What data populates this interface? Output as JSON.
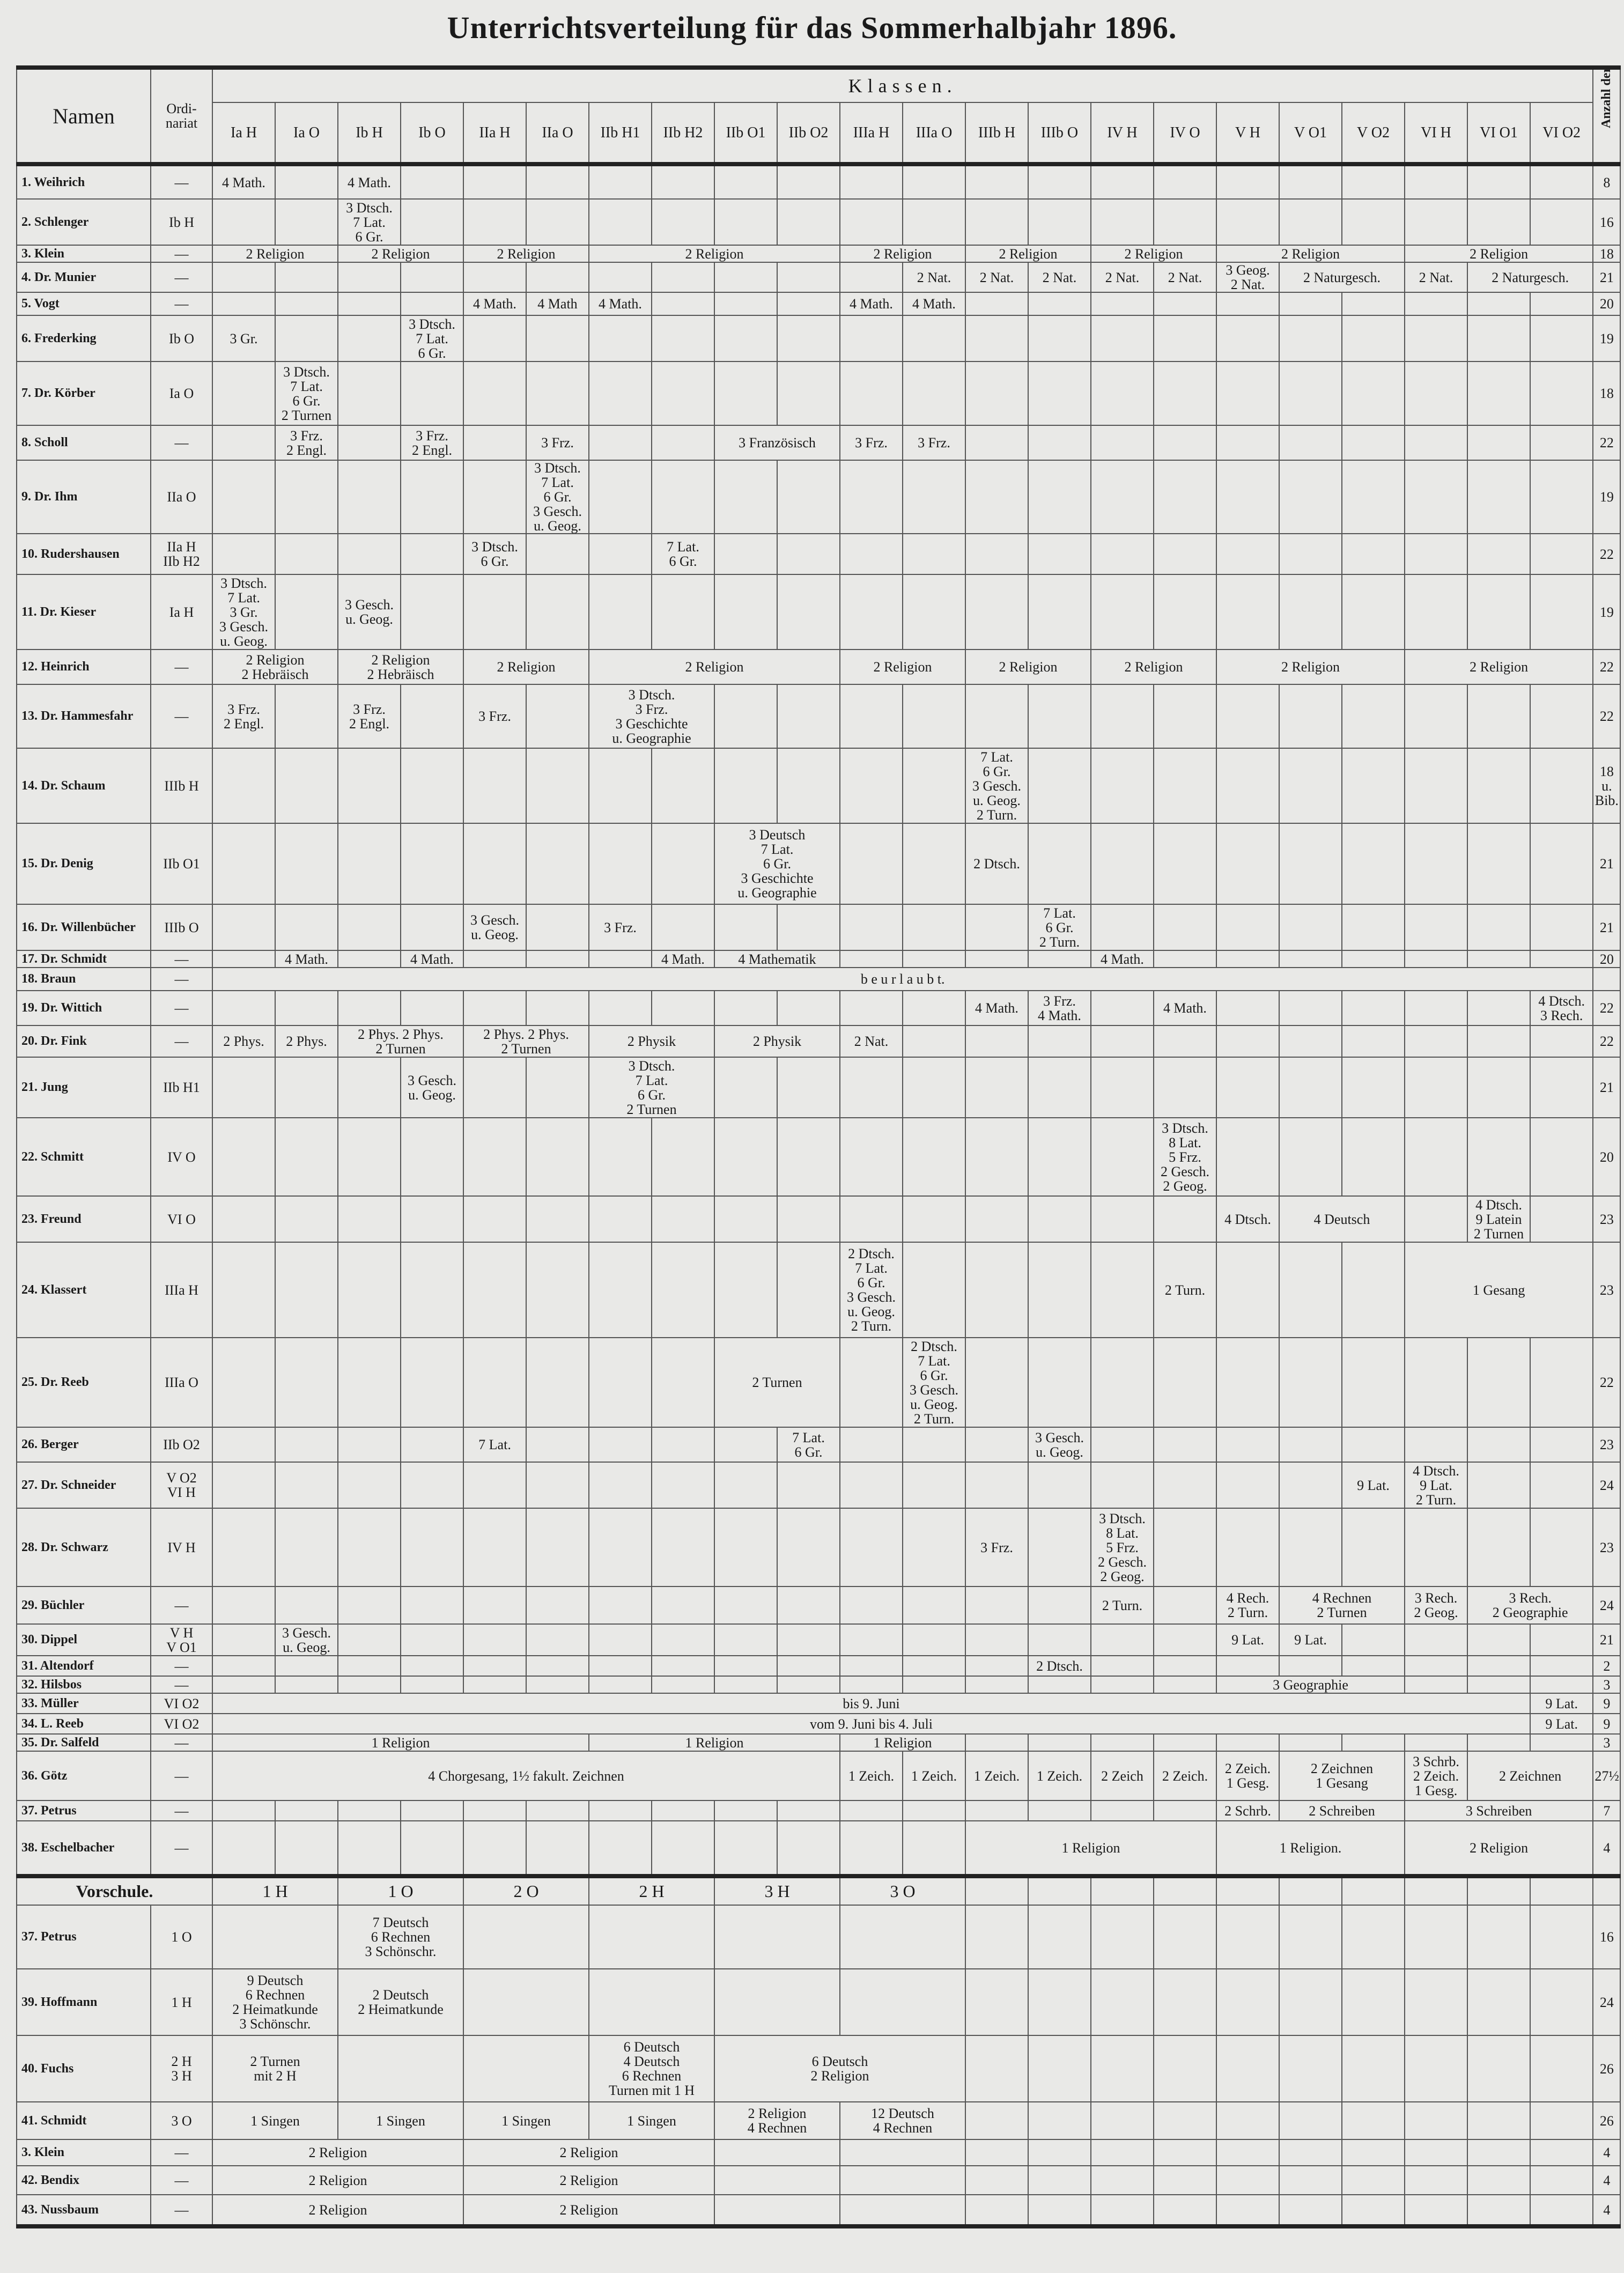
{
  "title": "Unterrichtsverteilung für das Sommerhalbjahr 1896.",
  "header": {
    "namen": "Namen",
    "ordinariat": "Ordi-\nnariat",
    "klassen": "Klassen.",
    "hours": "Anzahl der Stunden",
    "classes": [
      "Ia H",
      "Ia O",
      "Ib H",
      "Ib O",
      "IIa H",
      "IIa O",
      "IIb H1",
      "IIb H2",
      "IIb O1",
      "IIb O2",
      "IIIa H",
      "IIIa O",
      "IIIb H",
      "IIIb O",
      "IV H",
      "IV O",
      "V H",
      "V O1",
      "V O2",
      "VI H",
      "VI O1",
      "VI O2"
    ]
  },
  "rows": [
    {
      "name": "1. Weihrich",
      "ord": "—",
      "hours": "8",
      "cells": [
        {
          "c": 0,
          "s": 1,
          "t": "4 Math."
        },
        {
          "c": 2,
          "s": 1,
          "t": "4 Math."
        }
      ]
    },
    {
      "name": "2. Schlenger",
      "ord": "Ib H",
      "hours": "16",
      "cells": [
        {
          "c": 2,
          "s": 1,
          "t": "3 Dtsch.\n7 Lat.\n6 Gr."
        }
      ]
    },
    {
      "name": "3. Klein",
      "ord": "—",
      "hours": "18",
      "cells": [
        {
          "c": 0,
          "s": 2,
          "t": "2 Religion"
        },
        {
          "c": 2,
          "s": 2,
          "t": "2 Religion"
        },
        {
          "c": 4,
          "s": 2,
          "t": "2 Religion"
        },
        {
          "c": 6,
          "s": 4,
          "t": "2 Religion"
        },
        {
          "c": 10,
          "s": 2,
          "t": "2 Religion"
        },
        {
          "c": 12,
          "s": 2,
          "t": "2 Religion"
        },
        {
          "c": 14,
          "s": 2,
          "t": "2 Religion"
        },
        {
          "c": 16,
          "s": 3,
          "t": "2 Religion"
        },
        {
          "c": 19,
          "s": 3,
          "t": "2 Religion"
        }
      ]
    },
    {
      "name": "4. Dr. Munier",
      "ord": "—",
      "hours": "21",
      "cells": [
        {
          "c": 11,
          "s": 1,
          "t": "2 Nat."
        },
        {
          "c": 12,
          "s": 1,
          "t": "2 Nat."
        },
        {
          "c": 13,
          "s": 1,
          "t": "2 Nat."
        },
        {
          "c": 14,
          "s": 1,
          "t": "2 Nat."
        },
        {
          "c": 15,
          "s": 1,
          "t": "2 Nat."
        },
        {
          "c": 16,
          "s": 1,
          "t": "3 Geog.\n2 Nat."
        },
        {
          "c": 17,
          "s": 2,
          "t": "2 Naturgesch."
        },
        {
          "c": 19,
          "s": 1,
          "t": "2 Nat."
        },
        {
          "c": 20,
          "s": 2,
          "t": "2 Naturgesch."
        }
      ]
    },
    {
      "name": "5. Vogt",
      "ord": "—",
      "hours": "20",
      "cells": [
        {
          "c": 4,
          "s": 1,
          "t": "4 Math."
        },
        {
          "c": 5,
          "s": 1,
          "t": "4 Math"
        },
        {
          "c": 6,
          "s": 1,
          "t": "4 Math."
        },
        {
          "c": 10,
          "s": 1,
          "t": "4 Math."
        },
        {
          "c": 11,
          "s": 1,
          "t": "4 Math."
        }
      ]
    },
    {
      "name": "6. Frederking",
      "ord": "Ib O",
      "hours": "19",
      "cells": [
        {
          "c": 0,
          "s": 1,
          "t": "3 Gr."
        },
        {
          "c": 3,
          "s": 1,
          "t": "3 Dtsch.\n7 Lat.\n6 Gr."
        }
      ]
    },
    {
      "name": "7. Dr. Körber",
      "ord": "Ia O",
      "hours": "18",
      "cells": [
        {
          "c": 1,
          "s": 1,
          "t": "3 Dtsch.\n7 Lat.\n6 Gr.\n2 Turnen"
        }
      ]
    },
    {
      "name": "8. Scholl",
      "ord": "—",
      "hours": "22",
      "cells": [
        {
          "c": 1,
          "s": 1,
          "t": "3 Frz.\n2 Engl."
        },
        {
          "c": 3,
          "s": 1,
          "t": "3 Frz.\n2 Engl."
        },
        {
          "c": 5,
          "s": 1,
          "t": "3 Frz."
        },
        {
          "c": 8,
          "s": 2,
          "t": "3 Französisch"
        },
        {
          "c": 10,
          "s": 1,
          "t": "3 Frz."
        },
        {
          "c": 11,
          "s": 1,
          "t": "3 Frz."
        }
      ]
    },
    {
      "name": "9. Dr. Ihm",
      "ord": "IIa O",
      "hours": "19",
      "cells": [
        {
          "c": 5,
          "s": 1,
          "t": "3 Dtsch.\n7 Lat.\n6 Gr.\n3 Gesch.\nu. Geog."
        }
      ]
    },
    {
      "name": "10. Rudershausen",
      "ord": "IIa H\nIIb H2",
      "hours": "22",
      "cells": [
        {
          "c": 4,
          "s": 1,
          "t": "3 Dtsch.\n6 Gr."
        },
        {
          "c": 7,
          "s": 1,
          "t": "7 Lat.\n6 Gr."
        }
      ]
    },
    {
      "name": "11. Dr. Kieser",
      "ord": "Ia H",
      "hours": "19",
      "cells": [
        {
          "c": 0,
          "s": 1,
          "t": "3 Dtsch.\n7 Lat.\n3 Gr.\n3 Gesch.\nu. Geog."
        },
        {
          "c": 2,
          "s": 1,
          "t": "3 Gesch.\nu. Geog."
        }
      ]
    },
    {
      "name": "12. Heinrich",
      "ord": "—",
      "hours": "22",
      "cells": [
        {
          "c": 0,
          "s": 2,
          "t": "2 Religion\n2 Hebräisch"
        },
        {
          "c": 2,
          "s": 2,
          "t": "2 Religion\n2 Hebräisch"
        },
        {
          "c": 4,
          "s": 2,
          "t": "2 Religion"
        },
        {
          "c": 6,
          "s": 4,
          "t": "2 Religion"
        },
        {
          "c": 10,
          "s": 2,
          "t": "2 Religion"
        },
        {
          "c": 12,
          "s": 2,
          "t": "2 Religion"
        },
        {
          "c": 14,
          "s": 2,
          "t": "2 Religion"
        },
        {
          "c": 16,
          "s": 3,
          "t": "2 Religion"
        },
        {
          "c": 19,
          "s": 3,
          "t": "2 Religion"
        }
      ]
    },
    {
      "name": "13. Dr. Hammesfahr",
      "ord": "—",
      "hours": "22",
      "cells": [
        {
          "c": 0,
          "s": 1,
          "t": "3 Frz.\n2 Engl."
        },
        {
          "c": 2,
          "s": 1,
          "t": "3 Frz.\n2 Engl."
        },
        {
          "c": 4,
          "s": 1,
          "t": "3 Frz."
        },
        {
          "c": 6,
          "s": 2,
          "t": "3 Dtsch.\n3 Frz.\n3 Geschichte\nu. Geographie"
        }
      ]
    },
    {
      "name": "14. Dr. Schaum",
      "ord": "IIIb H",
      "hours": "18\nu.\nBib.",
      "cells": [
        {
          "c": 12,
          "s": 1,
          "t": "7 Lat.\n6 Gr.\n3 Gesch.\nu. Geog.\n2 Turn."
        }
      ]
    },
    {
      "name": "15. Dr. Denig",
      "ord": "IIb O1",
      "hours": "21",
      "cells": [
        {
          "c": 8,
          "s": 2,
          "t": "3 Deutsch\n7 Lat.\n6 Gr.\n3 Geschichte\nu. Geographie"
        },
        {
          "c": 12,
          "s": 1,
          "t": "2 Dtsch."
        }
      ]
    },
    {
      "name": "16. Dr. Willenbücher",
      "ord": "IIIb O",
      "hours": "21",
      "cells": [
        {
          "c": 4,
          "s": 1,
          "t": "3 Gesch.\nu. Geog."
        },
        {
          "c": 6,
          "s": 1,
          "t": "3 Frz."
        },
        {
          "c": 13,
          "s": 1,
          "t": "7 Lat.\n6 Gr.\n2 Turn."
        }
      ]
    },
    {
      "name": "17. Dr. Schmidt",
      "ord": "—",
      "hours": "20",
      "cells": [
        {
          "c": 1,
          "s": 1,
          "t": "4 Math."
        },
        {
          "c": 3,
          "s": 1,
          "t": "4 Math."
        },
        {
          "c": 7,
          "s": 1,
          "t": "4 Math."
        },
        {
          "c": 8,
          "s": 2,
          "t": "4 Mathematik"
        },
        {
          "c": 14,
          "s": 1,
          "t": "4 Math."
        }
      ]
    },
    {
      "name": "18. Braun",
      "ord": "—",
      "hours": "",
      "cells": [
        {
          "c": 0,
          "s": 22,
          "t": "b e u r l a u b t."
        }
      ]
    },
    {
      "name": "19. Dr. Wittich",
      "ord": "—",
      "hours": "22",
      "cells": [
        {
          "c": 12,
          "s": 1,
          "t": "4 Math."
        },
        {
          "c": 13,
          "s": 1,
          "t": "3 Frz.\n4 Math."
        },
        {
          "c": 15,
          "s": 1,
          "t": "4 Math."
        },
        {
          "c": 21,
          "s": 1,
          "t": "4 Dtsch.\n3 Rech."
        }
      ]
    },
    {
      "name": "20. Dr. Fink",
      "ord": "—",
      "hours": "22",
      "cells": [
        {
          "c": 0,
          "s": 1,
          "t": "2 Phys."
        },
        {
          "c": 1,
          "s": 1,
          "t": "2 Phys."
        },
        {
          "c": 2,
          "s": 2,
          "t": "2 Phys.  2 Phys.\n2 Turnen"
        },
        {
          "c": 4,
          "s": 2,
          "t": "2 Phys.  2 Phys.\n2 Turnen"
        },
        {
          "c": 6,
          "s": 2,
          "t": "2 Physik"
        },
        {
          "c": 8,
          "s": 2,
          "t": "2 Physik"
        },
        {
          "c": 10,
          "s": 1,
          "t": "2 Nat."
        }
      ]
    },
    {
      "name": "21. Jung",
      "ord": "IIb H1",
      "hours": "21",
      "cells": [
        {
          "c": 3,
          "s": 1,
          "t": "3 Gesch.\nu. Geog."
        },
        {
          "c": 6,
          "s": 2,
          "t": "3 Dtsch.\n7 Lat.\n6 Gr.\n2 Turnen"
        }
      ]
    },
    {
      "name": "22. Schmitt",
      "ord": "IV O",
      "hours": "20",
      "cells": [
        {
          "c": 15,
          "s": 1,
          "t": "3 Dtsch.\n8 Lat.\n5 Frz.\n2 Gesch.\n2 Geog."
        }
      ]
    },
    {
      "name": "23. Freund",
      "ord": "VI O",
      "hours": "23",
      "cells": [
        {
          "c": 16,
          "s": 1,
          "t": "4 Dtsch."
        },
        {
          "c": 17,
          "s": 2,
          "t": "4 Deutsch"
        },
        {
          "c": 20,
          "s": 1,
          "t": "4 Dtsch.\n9 Latein\n2 Turnen"
        }
      ]
    },
    {
      "name": "24. Klassert",
      "ord": "IIIa H",
      "hours": "23",
      "cells": [
        {
          "c": 10,
          "s": 1,
          "t": "2 Dtsch.\n7 Lat.\n6 Gr.\n3 Gesch.\nu. Geog.\n2 Turn."
        },
        {
          "c": 15,
          "s": 1,
          "t": "2 Turn."
        },
        {
          "c": 19,
          "s": 3,
          "t": "1 Gesang"
        }
      ]
    },
    {
      "name": "25. Dr. Reeb",
      "ord": "IIIa O",
      "hours": "22",
      "cells": [
        {
          "c": 8,
          "s": 2,
          "t": "2 Turnen"
        },
        {
          "c": 11,
          "s": 1,
          "t": "2 Dtsch.\n7 Lat.\n6 Gr.\n3 Gesch.\nu. Geog.\n2 Turn."
        }
      ]
    },
    {
      "name": "26. Berger",
      "ord": "IIb O2",
      "hours": "23",
      "cells": [
        {
          "c": 4,
          "s": 1,
          "t": "7 Lat."
        },
        {
          "c": 9,
          "s": 1,
          "t": "7 Lat.\n6 Gr."
        },
        {
          "c": 13,
          "s": 1,
          "t": "3 Gesch.\nu. Geog."
        }
      ]
    },
    {
      "name": "27. Dr. Schneider",
      "ord": "V O2\nVI H",
      "hours": "24",
      "cells": [
        {
          "c": 18,
          "s": 1,
          "t": "9 Lat."
        },
        {
          "c": 19,
          "s": 1,
          "t": "4 Dtsch.\n9 Lat.\n2 Turn."
        }
      ]
    },
    {
      "name": "28. Dr. Schwarz",
      "ord": "IV H",
      "hours": "23",
      "cells": [
        {
          "c": 12,
          "s": 1,
          "t": "3 Frz."
        },
        {
          "c": 14,
          "s": 1,
          "t": "3 Dtsch.\n8 Lat.\n5 Frz.\n2 Gesch.\n2 Geog."
        }
      ]
    },
    {
      "name": "29. Büchler",
      "ord": "—",
      "hours": "24",
      "cells": [
        {
          "c": 14,
          "s": 1,
          "t": "2 Turn."
        },
        {
          "c": 16,
          "s": 1,
          "t": "4 Rech.\n2 Turn."
        },
        {
          "c": 17,
          "s": 2,
          "t": "4 Rechnen\n2 Turnen"
        },
        {
          "c": 19,
          "s": 1,
          "t": "3 Rech.\n2 Geog."
        },
        {
          "c": 20,
          "s": 2,
          "t": "3 Rech.\n2 Geographie"
        }
      ]
    },
    {
      "name": "30. Dippel",
      "ord": "V H\nV O1",
      "hours": "21",
      "cells": [
        {
          "c": 1,
          "s": 1,
          "t": "3 Gesch.\nu. Geog."
        },
        {
          "c": 16,
          "s": 1,
          "t": "9 Lat."
        },
        {
          "c": 17,
          "s": 1,
          "t": "9 Lat."
        }
      ]
    },
    {
      "name": "31. Altendorf",
      "ord": "—",
      "hours": "2",
      "cells": [
        {
          "c": 13,
          "s": 1,
          "t": "2 Dtsch."
        }
      ]
    },
    {
      "name": "32. Hilsbos",
      "ord": "—",
      "hours": "3",
      "cells": [
        {
          "c": 16,
          "s": 3,
          "t": "3 Geographie"
        }
      ]
    },
    {
      "name": "33. Müller",
      "ord": "VI O2",
      "hours": "9",
      "cells": [
        {
          "c": 0,
          "s": 21,
          "t": "bis 9. Juni"
        },
        {
          "c": 21,
          "s": 1,
          "t": "9 Lat."
        }
      ]
    },
    {
      "name": "34. L. Reeb",
      "ord": "VI O2",
      "hours": "9",
      "cells": [
        {
          "c": 0,
          "s": 21,
          "t": "vom 9. Juni bis 4. Juli"
        },
        {
          "c": 21,
          "s": 1,
          "t": "9 Lat."
        }
      ]
    },
    {
      "name": "35. Dr. Salfeld",
      "ord": "—",
      "hours": "3",
      "cells": [
        {
          "c": 0,
          "s": 6,
          "t": "1 Religion"
        },
        {
          "c": 6,
          "s": 4,
          "t": "1 Religion"
        },
        {
          "c": 10,
          "s": 2,
          "t": "1 Religion"
        }
      ]
    },
    {
      "name": "36. Götz",
      "ord": "—",
      "hours": "27½",
      "cells": [
        {
          "c": 0,
          "s": 10,
          "t": "4 Chorgesang, 1½ fakult. Zeichnen"
        },
        {
          "c": 10,
          "s": 1,
          "t": "1 Zeich."
        },
        {
          "c": 11,
          "s": 1,
          "t": "1 Zeich."
        },
        {
          "c": 12,
          "s": 1,
          "t": "1 Zeich."
        },
        {
          "c": 13,
          "s": 1,
          "t": "1 Zeich."
        },
        {
          "c": 14,
          "s": 1,
          "t": "2 Zeich"
        },
        {
          "c": 15,
          "s": 1,
          "t": "2 Zeich."
        },
        {
          "c": 16,
          "s": 1,
          "t": "2 Zeich.\n1 Gesg."
        },
        {
          "c": 17,
          "s": 2,
          "t": "2 Zeichnen\n1 Gesang"
        },
        {
          "c": 19,
          "s": 1,
          "t": "3 Schrb.\n2 Zeich.\n1 Gesg."
        },
        {
          "c": 20,
          "s": 2,
          "t": "2 Zeichnen"
        }
      ]
    },
    {
      "name": "37. Petrus",
      "ord": "—",
      "hours": "7",
      "cells": [
        {
          "c": 16,
          "s": 1,
          "t": "2 Schrb."
        },
        {
          "c": 17,
          "s": 2,
          "t": "2 Schreiben"
        },
        {
          "c": 19,
          "s": 3,
          "t": "3 Schreiben"
        }
      ]
    },
    {
      "name": "38. Eschelbacher",
      "ord": "—",
      "hours": "4",
      "cells": [
        {
          "c": 12,
          "s": 4,
          "t": "1 Religion"
        },
        {
          "c": 16,
          "s": 3,
          "t": "1 Religion."
        },
        {
          "c": 19,
          "s": 3,
          "t": "2 Religion"
        }
      ]
    }
  ],
  "vorschule": {
    "label": "Vorschule.",
    "classes": [
      "1 H",
      "1 O",
      "2 O",
      "2 H",
      "3 H",
      "3 O"
    ],
    "rows": [
      {
        "name": "37. Petrus",
        "ord": "1 O",
        "hours": "16",
        "cells": [
          {
            "c": 1,
            "s": 1,
            "t": "7 Deutsch\n6 Rechnen\n3 Schönschr."
          }
        ]
      },
      {
        "name": "39. Hoffmann",
        "ord": "1 H",
        "hours": "24",
        "cells": [
          {
            "c": 0,
            "s": 1,
            "t": "9 Deutsch\n6 Rechnen\n2 Heimatkunde\n3 Schönschr."
          },
          {
            "c": 1,
            "s": 1,
            "t": "2 Deutsch\n2 Heimatkunde"
          }
        ]
      },
      {
        "name": "40. Fuchs",
        "ord": "2 H\n3 H",
        "hours": "26",
        "cells": [
          {
            "c": 0,
            "s": 1,
            "t": "2 Turnen\nmit 2 H"
          },
          {
            "c": 3,
            "s": 1,
            "t": "6 Deutsch\n4 Deutsch\n6 Rechnen\nTurnen mit 1 H"
          },
          {
            "c": 4,
            "s": 2,
            "t": "6 Deutsch\n2 Religion"
          }
        ]
      },
      {
        "name": "41. Schmidt",
        "ord": "3 O",
        "hours": "26",
        "cells": [
          {
            "c": 0,
            "s": 1,
            "t": "1 Singen"
          },
          {
            "c": 1,
            "s": 1,
            "t": "1 Singen"
          },
          {
            "c": 2,
            "s": 1,
            "t": "1 Singen"
          },
          {
            "c": 3,
            "s": 1,
            "t": "1 Singen"
          },
          {
            "c": 4,
            "s": 1,
            "t": "2 Religion\n4 Rechnen"
          },
          {
            "c": 5,
            "s": 1,
            "t": "12 Deutsch\n4 Rechnen"
          }
        ]
      },
      {
        "name": "3. Klein",
        "ord": "—",
        "hours": "4",
        "cells": [
          {
            "c": 0,
            "s": 2,
            "t": "2 Religion"
          },
          {
            "c": 2,
            "s": 2,
            "t": "2 Religion"
          }
        ]
      },
      {
        "name": "42. Bendix",
        "ord": "—",
        "hours": "4",
        "cells": [
          {
            "c": 0,
            "s": 2,
            "t": "2 Religion"
          },
          {
            "c": 2,
            "s": 2,
            "t": "2 Religion"
          }
        ]
      },
      {
        "name": "43. Nussbaum",
        "ord": "—",
        "hours": "4",
        "cells": [
          {
            "c": 0,
            "s": 2,
            "t": "2 Religion"
          },
          {
            "c": 2,
            "s": 2,
            "t": "2 Religion"
          }
        ]
      }
    ]
  }
}
